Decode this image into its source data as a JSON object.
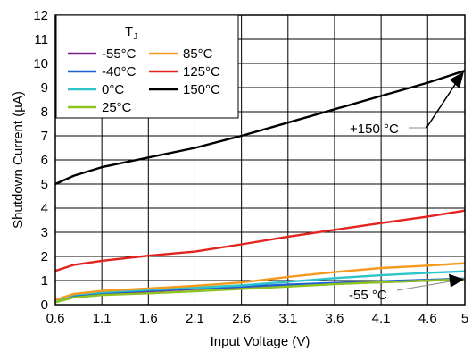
{
  "chart_data": {
    "type": "line",
    "xlabel": "Input Voltage (V)",
    "ylabel": "Shutdown Current (µA)",
    "xlim": [
      0.6,
      5
    ],
    "ylim": [
      0,
      12
    ],
    "xticks": [
      "0.6",
      "1.1",
      "1.6",
      "2.1",
      "2.6",
      "3.1",
      "3.6",
      "4.1",
      "4.6",
      "5"
    ],
    "yticks": [
      "0",
      "1",
      "2",
      "3",
      "4",
      "5",
      "6",
      "7",
      "8",
      "9",
      "10",
      "11",
      "12"
    ],
    "grid": true,
    "legend": {
      "title": "T",
      "title_sub": "J",
      "position": "top-left",
      "columns": 2
    },
    "series": [
      {
        "name": "-55°C",
        "color": "#7B1F8E",
        "x": [
          0.6,
          0.8,
          1.1,
          1.6,
          2.1,
          2.6,
          3.1,
          3.6,
          4.1,
          4.6,
          5
        ],
        "y": [
          0.1,
          0.35,
          0.45,
          0.55,
          0.65,
          0.72,
          0.8,
          0.87,
          0.93,
          1.0,
          1.05
        ]
      },
      {
        "name": "-40°C",
        "color": "#1F5FD6",
        "x": [
          0.6,
          0.8,
          1.1,
          1.6,
          2.1,
          2.6,
          3.1,
          3.6,
          4.1,
          4.6,
          5
        ],
        "y": [
          0.12,
          0.38,
          0.48,
          0.58,
          0.67,
          0.75,
          0.83,
          0.9,
          0.97,
          1.03,
          1.08
        ]
      },
      {
        "name": "0°C",
        "color": "#2EC4C9",
        "x": [
          0.6,
          0.8,
          1.1,
          1.6,
          2.1,
          2.6,
          3.1,
          3.6,
          4.1,
          4.6,
          5
        ],
        "y": [
          0.15,
          0.42,
          0.52,
          0.62,
          0.7,
          0.8,
          0.95,
          1.1,
          1.22,
          1.32,
          1.38
        ]
      },
      {
        "name": "25°C",
        "color": "#8DC21F",
        "x": [
          0.6,
          0.8,
          1.1,
          1.6,
          2.1,
          2.6,
          3.1,
          3.6,
          4.1,
          4.6,
          5
        ],
        "y": [
          0.1,
          0.3,
          0.4,
          0.47,
          0.55,
          0.65,
          0.75,
          0.85,
          0.93,
          1.0,
          1.05
        ]
      },
      {
        "name": "85°C",
        "color": "#F59A1C",
        "x": [
          0.6,
          0.8,
          1.1,
          1.6,
          2.1,
          2.6,
          3.1,
          3.6,
          4.1,
          4.6,
          5
        ],
        "y": [
          0.2,
          0.45,
          0.57,
          0.67,
          0.78,
          0.92,
          1.15,
          1.35,
          1.52,
          1.62,
          1.72
        ]
      },
      {
        "name": "125°C",
        "color": "#E3231F",
        "x": [
          0.6,
          0.8,
          1.1,
          1.6,
          2.1,
          2.6,
          3.1,
          3.6,
          4.1,
          4.6,
          5
        ],
        "y": [
          1.4,
          1.65,
          1.82,
          2.03,
          2.2,
          2.5,
          2.82,
          3.1,
          3.38,
          3.65,
          3.9
        ]
      },
      {
        "name": "150°C",
        "color": "#000000",
        "x": [
          0.6,
          0.8,
          1.1,
          1.6,
          2.1,
          2.6,
          3.1,
          3.6,
          4.1,
          4.6,
          5
        ],
        "y": [
          5.0,
          5.35,
          5.7,
          6.1,
          6.5,
          7.0,
          7.55,
          8.1,
          8.65,
          9.2,
          9.7
        ]
      }
    ],
    "annotations": [
      {
        "text": "+150 °C",
        "target_x": 5,
        "target_y": 9.7
      },
      {
        "text": "-55 °C",
        "target_x": 5,
        "target_y": 1.05
      }
    ]
  }
}
